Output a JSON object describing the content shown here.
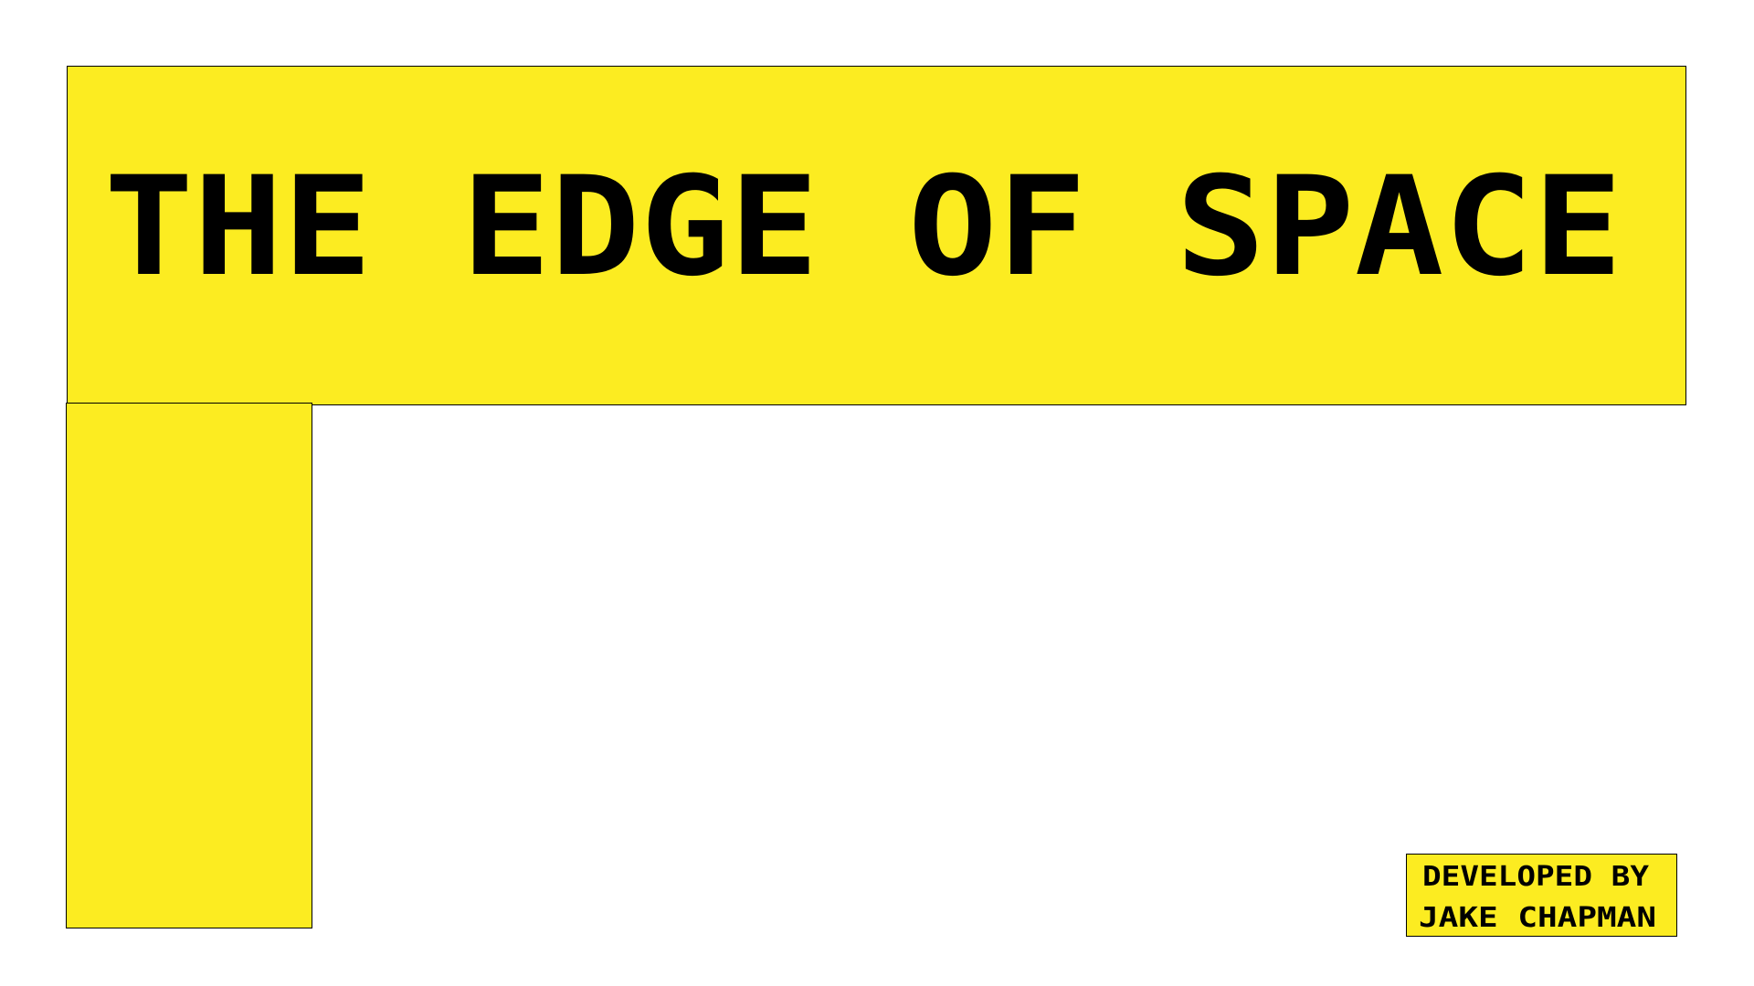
{
  "title": "THE EDGE OF SPACE",
  "credits": {
    "lines": [
      "DEVELOPED BY",
      "JAKE CHAPMAN"
    ]
  }
}
